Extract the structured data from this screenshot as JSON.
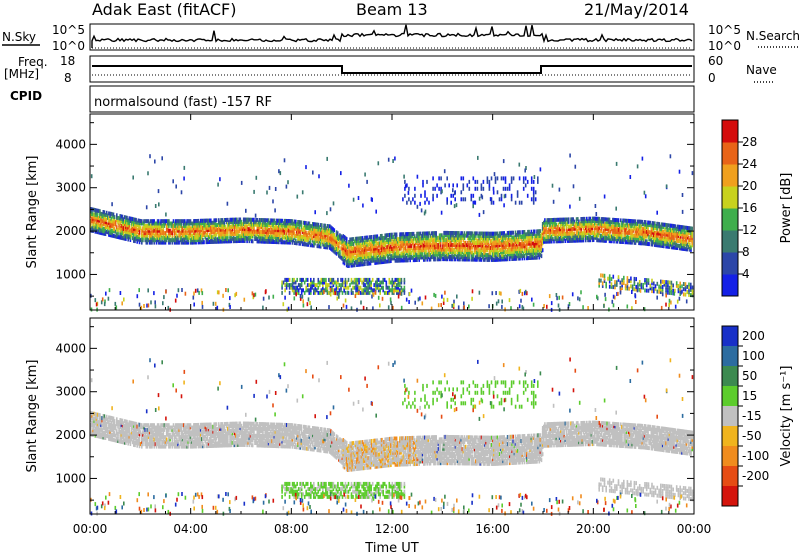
{
  "header": {
    "station": "Adak East (fitACF)",
    "beam": "Beam 13",
    "date": "21/May/2014"
  },
  "summary_panels": {
    "nsky_label": "N.Sky",
    "nsky_ticks": [
      "10^5",
      "10^0"
    ],
    "nsearch_label": "N.Search",
    "nsearch_ticks": [
      "10^5",
      "10^0"
    ],
    "freq_label": "Freq.",
    "freq_unit": "[MHz]",
    "freq_ticks": [
      "18",
      "8"
    ],
    "nave_label": "Nave",
    "nave_ticks": [
      "60",
      "0"
    ],
    "cpid_label": "CPID",
    "cpid_text": "normalsound (fast) -157 RF"
  },
  "chart_data": [
    {
      "type": "heatmap",
      "name": "power-rti",
      "ylabel": "Slant Range [km]",
      "xlabel": "",
      "x_ticks": [
        "00:00",
        "04:00",
        "08:00",
        "12:00",
        "16:00",
        "20:00",
        "00:00"
      ],
      "xlim_hours": [
        0,
        24
      ],
      "y_ticks": [
        1000,
        2000,
        3000,
        4000
      ],
      "ylim": [
        180,
        4700
      ],
      "colorbar": {
        "label": "Power [dB]",
        "ticks": [
          "4",
          "8",
          "12",
          "16",
          "20",
          "24",
          "28"
        ],
        "colors": [
          "#1420e6",
          "#2c46a8",
          "#3a7a70",
          "#3fae4c",
          "#c8d21e",
          "#f0a01e",
          "#e86418",
          "#d40c0c"
        ]
      },
      "echo_band_center_km": [
        {
          "t": 0,
          "r": 2320
        },
        {
          "t": 1,
          "r": 2180
        },
        {
          "t": 2,
          "r": 2040
        },
        {
          "t": 4,
          "r": 2040
        },
        {
          "t": 6,
          "r": 2080
        },
        {
          "t": 8,
          "r": 2040
        },
        {
          "t": 9.5,
          "r": 1920
        },
        {
          "t": 10.2,
          "r": 1560
        },
        {
          "t": 12,
          "r": 1680
        },
        {
          "t": 14,
          "r": 1720
        },
        {
          "t": 16,
          "r": 1700
        },
        {
          "t": 17.9,
          "r": 1760
        },
        {
          "t": 18,
          "r": 2060
        },
        {
          "t": 20,
          "r": 2100
        },
        {
          "t": 22,
          "r": 2020
        },
        {
          "t": 24,
          "r": 1860
        }
      ]
    },
    {
      "type": "heatmap",
      "name": "velocity-rti",
      "ylabel": "Slant Range [km]",
      "xlabel": "Time UT",
      "x_ticks": [
        "00:00",
        "04:00",
        "08:00",
        "12:00",
        "16:00",
        "20:00",
        "00:00"
      ],
      "xlim_hours": [
        0,
        24
      ],
      "y_ticks": [
        1000,
        2000,
        3000,
        4000
      ],
      "ylim": [
        180,
        4700
      ],
      "colorbar": {
        "label": "Velocity [m s⁻¹]",
        "ticks": [
          "200",
          "100",
          "50",
          "15",
          "-15",
          "-50",
          "-100",
          "-200"
        ],
        "colors": [
          "#1830c8",
          "#2c6ca0",
          "#3c8a50",
          "#5ccc2c",
          "#c0c0c0",
          "#f0b41e",
          "#f08c1e",
          "#e64c14",
          "#d4140c"
        ]
      }
    }
  ]
}
